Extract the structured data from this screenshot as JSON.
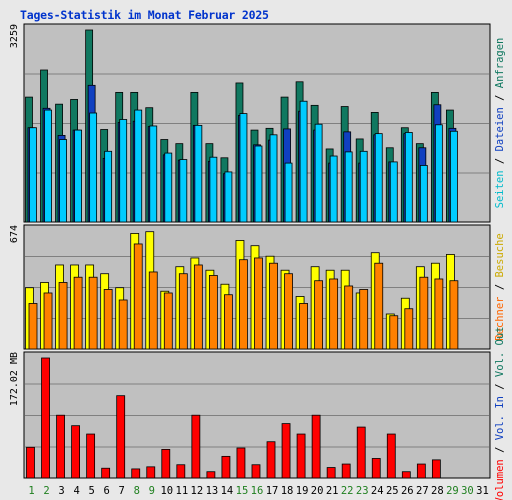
{
  "chart_data": {
    "type": "bar",
    "title": "Tages-Statistik im Monat Februar 2025",
    "x": {
      "days": [
        "1",
        "2",
        "3",
        "4",
        "5",
        "6",
        "7",
        "8",
        "9",
        "10",
        "11",
        "12",
        "13",
        "14",
        "15",
        "16",
        "17",
        "18",
        "19",
        "20",
        "21",
        "22",
        "23",
        "24",
        "25",
        "26",
        "27",
        "28",
        "29",
        "30",
        "31"
      ],
      "weekend_days": [
        "1",
        "2",
        "8",
        "9",
        "15",
        "16",
        "22",
        "23",
        "29",
        "30"
      ],
      "weekend_color": "#208020",
      "weekday_color": "#000000"
    },
    "colors": {
      "background": "#c0c0c0",
      "anfragen": "#107860",
      "dateien": "#1040c0",
      "seiten": "#00ccff",
      "besuche": "#ffff00",
      "rechner": "#ff8000",
      "volumen": "#ff0000"
    },
    "panels": {
      "top": {
        "ymax_label": "3259",
        "ymax": 3259,
        "side_labels": [
          {
            "text": "Seiten",
            "color": "#00bbcc"
          },
          {
            "text": " / ",
            "color": "#000000"
          },
          {
            "text": "Dateien",
            "color": "#1040c0"
          },
          {
            "text": " / ",
            "color": "#000000"
          },
          {
            "text": "Anfragen",
            "color": "#107860"
          }
        ],
        "series": [
          {
            "name": "Anfragen",
            "values": [
              2120,
              2580,
              2000,
              2080,
              3259,
              1570,
              2200,
              2200,
              1940,
              1400,
              1330,
              2200,
              1330,
              1090,
              2360,
              1560,
              1590,
              2120,
              2380,
              1980,
              1240,
              1960,
              1410,
              1860,
              1260,
              1600,
              1330,
              2200,
              1900,
              null,
              null
            ]
          },
          {
            "name": "Dateien",
            "values": [
              1600,
              1930,
              1470,
              1560,
              2320,
              1080,
              1690,
              1710,
              1620,
              1140,
              1050,
              1640,
              1030,
              820,
              1810,
              1310,
              1390,
              1580,
              1880,
              1560,
              1000,
              1530,
              1000,
              1480,
              1020,
              1500,
              1260,
              1990,
              1590,
              null,
              null
            ]
          },
          {
            "name": "Seiten",
            "values": [
              1600,
              1900,
              1400,
              1560,
              1850,
              1200,
              1740,
              1900,
              1630,
              1170,
              1060,
              1640,
              1100,
              850,
              1840,
              1290,
              1480,
              1000,
              2050,
              1660,
              1120,
              1190,
              1200,
              1500,
              1020,
              1520,
              960,
              1650,
              1540,
              null,
              null
            ]
          }
        ]
      },
      "middle": {
        "ymax_label": "674",
        "ymax": 674,
        "side_labels": [
          {
            "text": "Rechner",
            "color": "#ff6600"
          },
          {
            "text": " / ",
            "color": "#000000"
          },
          {
            "text": "Besuche",
            "color": "#ccaa00"
          }
        ],
        "series": [
          {
            "name": "Besuche",
            "values": [
              350,
              380,
              480,
              480,
              480,
              430,
              350,
              660,
              670,
              330,
              470,
              520,
              450,
              370,
              620,
              590,
              530,
              450,
              300,
              470,
              450,
              450,
              320,
              550,
              200,
              290,
              470,
              490,
              540,
              null,
              null
            ]
          },
          {
            "name": "Rechner",
            "values": [
              260,
              320,
              380,
              410,
              410,
              340,
              280,
              600,
              440,
              320,
              430,
              480,
              420,
              310,
              510,
              520,
              490,
              430,
              260,
              390,
              400,
              360,
              340,
              490,
              190,
              230,
              410,
              400,
              390,
              null,
              null
            ]
          }
        ]
      },
      "bottom": {
        "ymax_label": "172.02 MB",
        "ymax": 172.02,
        "side_labels": [
          {
            "text": "Volumen",
            "color": "#ff0000"
          },
          {
            "text": " / ",
            "color": "#000000"
          },
          {
            "text": "Vol. In",
            "color": "#1040c0"
          },
          {
            "text": " / ",
            "color": "#000000"
          },
          {
            "text": "Vol. Out",
            "color": "#107860"
          }
        ],
        "series": [
          {
            "name": "Volumen",
            "values": [
              44,
              172.02,
              90,
              75,
              63,
              14,
              118,
              13,
              16,
              41,
              19,
              90,
              9,
              31,
              43,
              19,
              52,
              78,
              63,
              90,
              15,
              20,
              73,
              28,
              63,
              9,
              20,
              26,
              null,
              null,
              null
            ]
          }
        ]
      }
    }
  }
}
